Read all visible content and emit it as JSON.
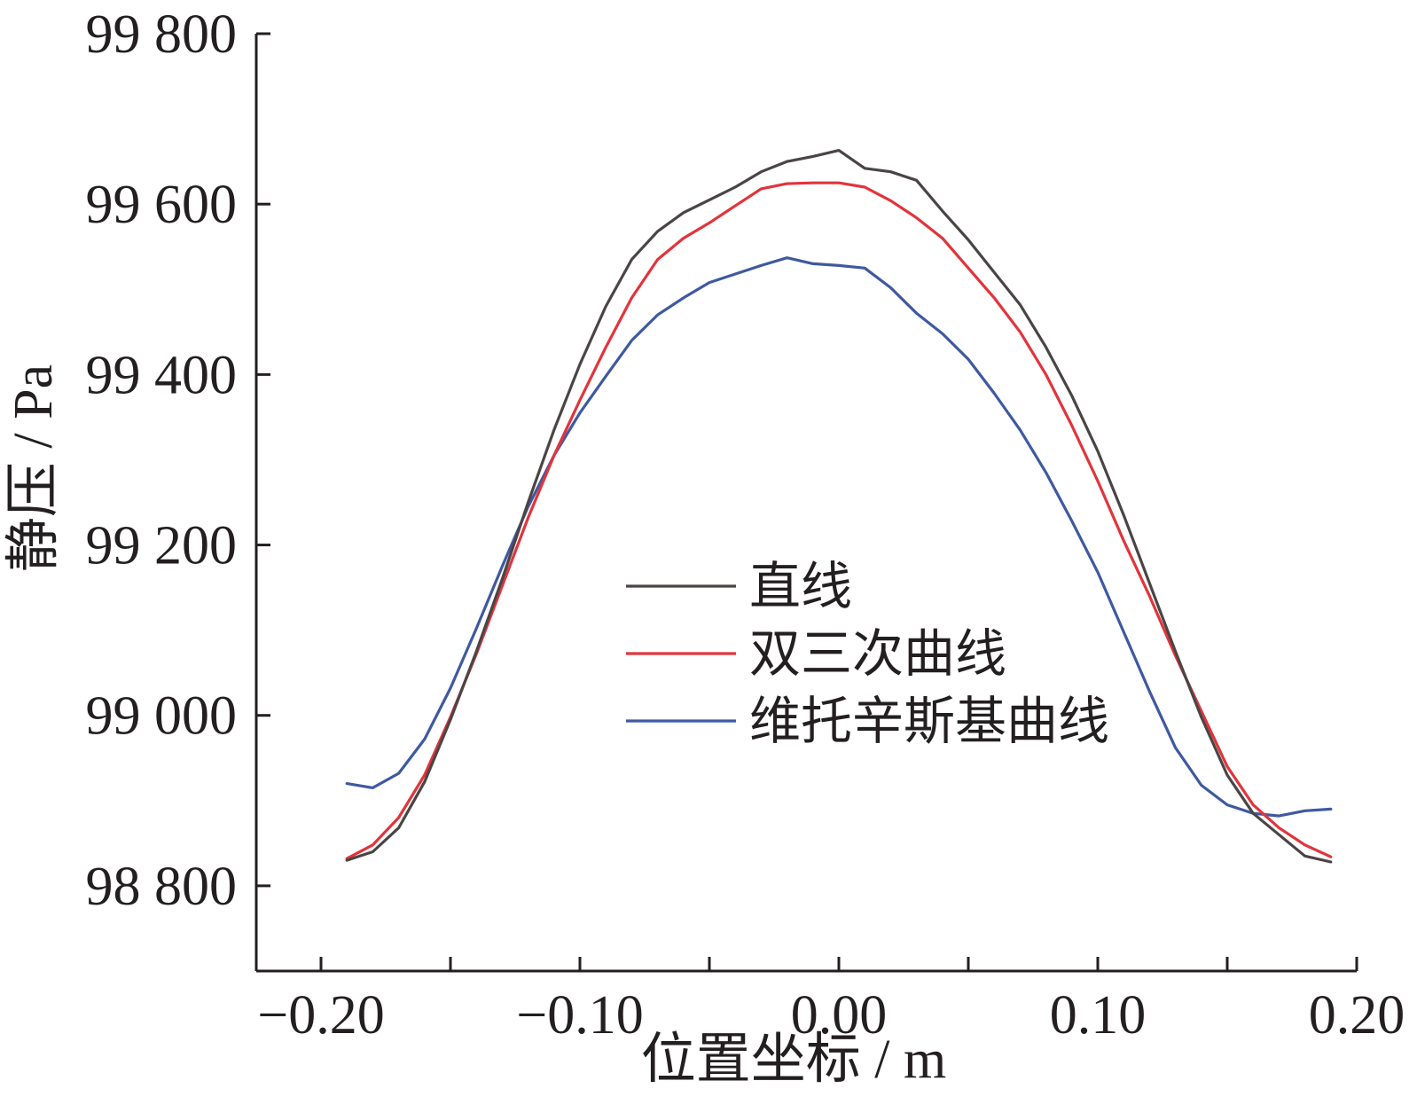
{
  "chart_data": {
    "type": "line",
    "title": "",
    "xlabel": "位置坐标 / m",
    "ylabel": "静压 / Pa",
    "xlim": [
      -0.225,
      0.2
    ],
    "ylim": [
      98700,
      99800
    ],
    "xticks": [
      -0.2,
      -0.1,
      0.0,
      0.1,
      0.2
    ],
    "xtick_labels": [
      "−0.20",
      "−0.10",
      "0.00",
      "0.10",
      "0.20"
    ],
    "xminor_ticks": [
      -0.15,
      -0.05,
      0.05,
      0.15
    ],
    "yticks": [
      98800,
      99000,
      99200,
      99400,
      99600,
      99800
    ],
    "ytick_labels": [
      "98 800",
      "99 000",
      "99 200",
      "99 400",
      "99 600",
      "99 800"
    ],
    "grid": false,
    "legend_position": "center-right",
    "series": [
      {
        "name": "直线",
        "color": "#4a4544",
        "x": [
          -0.19,
          -0.18,
          -0.17,
          -0.16,
          -0.15,
          -0.14,
          -0.13,
          -0.12,
          -0.11,
          -0.1,
          -0.09,
          -0.08,
          -0.07,
          -0.06,
          -0.05,
          -0.04,
          -0.03,
          -0.02,
          -0.01,
          0.0,
          0.01,
          0.02,
          0.03,
          0.04,
          0.05,
          0.06,
          0.07,
          0.08,
          0.09,
          0.1,
          0.11,
          0.12,
          0.13,
          0.14,
          0.15,
          0.16,
          0.17,
          0.18,
          0.19
        ],
        "y": [
          98830,
          98840,
          98868,
          98922,
          98995,
          99075,
          99160,
          99250,
          99335,
          99412,
          99480,
          99535,
          99568,
          99590,
          99605,
          99620,
          99638,
          99650,
          99656,
          99663,
          99642,
          99638,
          99628,
          99592,
          99558,
          99520,
          99482,
          99432,
          99375,
          99310,
          99235,
          99155,
          99075,
          98998,
          98930,
          98885,
          98860,
          98835,
          98828
        ]
      },
      {
        "name": "双三次曲线",
        "color": "#e2343c",
        "x": [
          -0.19,
          -0.18,
          -0.17,
          -0.16,
          -0.15,
          -0.14,
          -0.13,
          -0.12,
          -0.11,
          -0.1,
          -0.09,
          -0.08,
          -0.07,
          -0.06,
          -0.05,
          -0.04,
          -0.03,
          -0.02,
          -0.01,
          0.0,
          0.01,
          0.02,
          0.03,
          0.04,
          0.05,
          0.06,
          0.07,
          0.08,
          0.09,
          0.1,
          0.11,
          0.12,
          0.13,
          0.14,
          0.15,
          0.16,
          0.17,
          0.18,
          0.19
        ],
        "y": [
          98832,
          98848,
          98880,
          98930,
          98998,
          99072,
          99152,
          99232,
          99305,
          99370,
          99432,
          99490,
          99535,
          99560,
          99578,
          99598,
          99618,
          99624,
          99625,
          99625,
          99620,
          99604,
          99584,
          99560,
          99525,
          99490,
          99450,
          99400,
          99340,
          99275,
          99205,
          99140,
          99070,
          99005,
          98940,
          98895,
          98868,
          98848,
          98834
        ]
      },
      {
        "name": "维托辛斯基曲线",
        "color": "#3f59a1",
        "x": [
          -0.19,
          -0.18,
          -0.17,
          -0.16,
          -0.15,
          -0.14,
          -0.13,
          -0.12,
          -0.11,
          -0.1,
          -0.09,
          -0.08,
          -0.07,
          -0.06,
          -0.05,
          -0.04,
          -0.03,
          -0.02,
          -0.01,
          0.0,
          0.01,
          0.02,
          0.03,
          0.04,
          0.05,
          0.06,
          0.07,
          0.08,
          0.09,
          0.1,
          0.11,
          0.12,
          0.13,
          0.14,
          0.15,
          0.16,
          0.17,
          0.18,
          0.19
        ],
        "y": [
          98920,
          98915,
          98932,
          98972,
          99032,
          99102,
          99175,
          99245,
          99305,
          99355,
          99398,
          99440,
          99470,
          99490,
          99508,
          99518,
          99528,
          99537,
          99530,
          99528,
          99525,
          99502,
          99472,
          99448,
          99418,
          99378,
          99335,
          99285,
          99228,
          99168,
          99098,
          99028,
          98962,
          98918,
          98895,
          98885,
          98882,
          98888,
          98890
        ]
      }
    ]
  }
}
